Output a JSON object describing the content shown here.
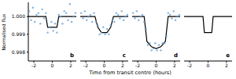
{
  "chart_data": [
    {
      "type": "scatter",
      "title": "b",
      "x_label": "Time from transit centre (hours)",
      "y_label": "Normalised flux",
      "xlim": [
        -2.6,
        2.6
      ],
      "xticks": [
        -2,
        0,
        2
      ],
      "ylim": [
        0.9975,
        1.0008
      ],
      "yticks": [
        0.998,
        0.999,
        {
          "value": 1,
          "label": "1.000"
        }
      ],
      "tick_labels": true,
      "series": [
        {
          "type": "scatter",
          "color": "#5b9bd5",
          "marker": "circle",
          "x": [
            -2.5,
            -2.3,
            -2.1,
            -1.9,
            -1.7,
            -1.5,
            -1.3,
            -1.1,
            -0.9,
            -0.7,
            -0.5,
            -0.3,
            -0.1,
            0.1,
            0.3,
            0.5,
            0.7,
            0.9,
            1.1,
            1.3,
            1.5,
            1.7,
            1.9,
            2.1,
            2.3,
            2.5
          ],
          "values": [
            1.0003,
            0.9998,
            1.0005,
            0.9997,
            1.0001,
            1.0002,
            0.9996,
            1.0004,
            0.9999,
            1.0002,
            0.9991,
            0.9994,
            0.9997,
            0.9992,
            0.9996,
            0.9991,
            1.0001,
            1.0,
            0.9996,
            1.0003,
            1.0002,
            0.9998,
            1.0007,
            0.9997,
            1.0,
            1.0002
          ]
        },
        {
          "type": "line",
          "color": "#000000",
          "line_style": "solid",
          "x": [
            -2.6,
            -0.7,
            -0.5,
            0.5,
            0.7,
            2.6
          ],
          "values": [
            1,
            1,
            0.9994,
            0.9994,
            1,
            1
          ]
        }
      ]
    },
    {
      "type": "scatter",
      "title": "c",
      "xlim": [
        -2.6,
        2.6
      ],
      "xticks": [
        -2,
        0,
        2
      ],
      "ylim": [
        0.9975,
        1.0008
      ],
      "yticks": [
        0.998,
        0.999,
        {
          "value": 1,
          "label": "1.000"
        }
      ],
      "tick_labels": "x",
      "series": [
        {
          "type": "scatter",
          "color": "#5b9bd5",
          "marker": "circle",
          "x": [
            -2.5,
            -2.3,
            -2.1,
            -1.9,
            -1.7,
            -1.5,
            -1.3,
            -1.1,
            -0.9,
            -0.7,
            -0.5,
            -0.3,
            -0.1,
            0.1,
            0.3,
            0.5,
            0.7,
            0.9,
            1.1,
            1.3,
            1.5,
            1.7,
            1.9,
            2.1,
            2.3,
            2.5
          ],
          "values": [
            1.0002,
            0.9999,
            1.0003,
            0.9998,
            1.0,
            1.0001,
            0.9997,
            1.0002,
            0.9997,
            0.9995,
            0.999,
            0.9991,
            0.9994,
            0.999,
            0.9993,
            0.999,
            0.9995,
            0.9998,
            0.9997,
            1.0002,
            1.0001,
            0.9999,
            1.0003,
            0.9998,
            1.0,
            1.0001
          ]
        },
        {
          "type": "line",
          "color": "#000000",
          "line_style": "solid",
          "x": [
            -2.6,
            -1.0,
            -0.7,
            -0.3,
            0.3,
            0.7,
            1.0,
            2.6
          ],
          "values": [
            1,
            1,
            0.9994,
            0.9991,
            0.9991,
            0.9994,
            1,
            1
          ]
        }
      ]
    },
    {
      "type": "scatter",
      "title": "d",
      "xlim": [
        -2.6,
        2.6
      ],
      "xticks": [
        -2,
        0,
        2
      ],
      "ylim": [
        0.9975,
        1.0008
      ],
      "yticks": [
        0.998,
        0.999,
        {
          "value": 1,
          "label": "1.000"
        }
      ],
      "tick_labels": "x",
      "series": [
        {
          "type": "scatter",
          "color": "#5b9bd5",
          "marker": "circle",
          "x": [
            -2.5,
            -2.3,
            -2.1,
            -1.9,
            -1.7,
            -1.5,
            -1.3,
            -1.1,
            -0.9,
            -0.7,
            -0.5,
            -0.3,
            -0.1,
            0.1,
            0.3,
            0.5,
            0.7,
            0.9,
            1.1,
            1.3,
            1.5,
            1.7,
            1.9,
            2.1,
            2.3,
            2.5
          ],
          "values": [
            1.0002,
            0.9999,
            1.0003,
            0.9998,
            1.0,
            1.0001,
            0.9997,
            0.9993,
            0.9984,
            0.9985,
            0.9981,
            0.9982,
            0.9985,
            0.9981,
            0.9984,
            0.9981,
            0.9985,
            0.9985,
            0.9989,
            1.0002,
            1.0001,
            0.9999,
            1.0003,
            0.9998,
            1.0,
            1.0001
          ]
        },
        {
          "type": "line",
          "color": "#000000",
          "line_style": "solid",
          "x": [
            -2.6,
            -1.3,
            -1.0,
            -0.5,
            0,
            0.5,
            1.0,
            1.3,
            2.6
          ],
          "values": [
            1,
            1,
            0.9986,
            0.9983,
            0.9982,
            0.9983,
            0.9986,
            1,
            1
          ]
        }
      ]
    },
    {
      "type": "line",
      "title": "e",
      "xlim": [
        -2.6,
        2.6
      ],
      "xticks": [
        -2,
        0,
        2
      ],
      "ylim": [
        0.9975,
        1.0008
      ],
      "yticks": [
        0.998,
        0.999,
        {
          "value": 1,
          "label": "1.000"
        }
      ],
      "tick_labels": "x",
      "series": [
        {
          "type": "line",
          "color": "#000000",
          "line_style": "solid",
          "x": [
            -2.6,
            -0.55,
            -0.4,
            0.4,
            0.55,
            2.6
          ],
          "values": [
            1,
            1,
            0.9991,
            0.9991,
            1,
            1
          ]
        }
      ]
    }
  ]
}
